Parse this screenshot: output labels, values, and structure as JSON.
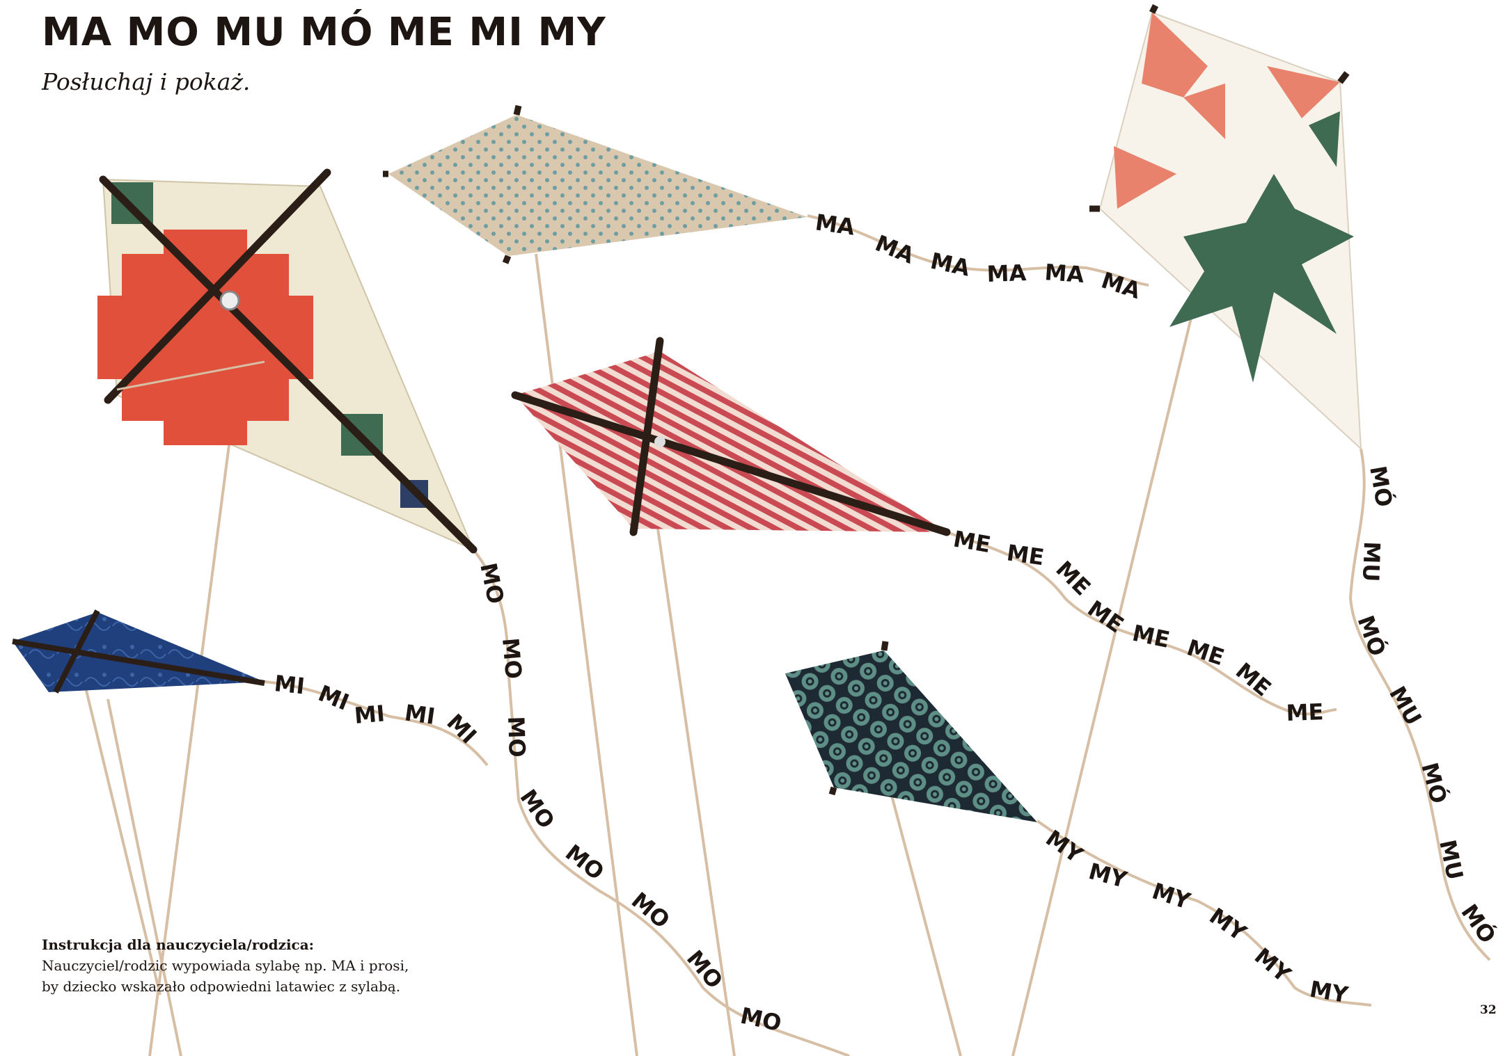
{
  "header": {
    "title": "MA MO MU MÓ ME MI MY",
    "subtitle": "Posłuchaj i pokaż."
  },
  "instruction": {
    "heading": "Instrukcja dla nauczyciela/rodzica:",
    "line1": "Nauczyciel/rodzic wypowiada sylabę np. MA i prosi,",
    "line2": "by dziecko wskazało odpowiedni latawiec z sylabą."
  },
  "page_number": "32",
  "colors": {
    "text": "#1c1512",
    "string": "#d6bfa5",
    "stick": "#2a1e17",
    "kite_cream": "#efe8d3",
    "kite_coral": "#e8826d",
    "kite_red_orange": "#e0503a",
    "kite_green": "#3f6b52",
    "kite_navy": "#1f3f7d",
    "kite_teal": "#5e8f86",
    "kite_stripe_red": "#c94a52",
    "kite_dots_bg": "#d9c7ae",
    "kite_dots": "#6f9ea2"
  },
  "kites": [
    {
      "name": "kite-cream-orange",
      "pattern": "cream-orange-cross",
      "syllable": "MO"
    },
    {
      "name": "kite-dotted",
      "pattern": "dotted",
      "syllable": "MA"
    },
    {
      "name": "kite-star",
      "pattern": "coral-green-star",
      "syllable": "MÓ / MU"
    },
    {
      "name": "kite-striped",
      "pattern": "red-stripes",
      "syllable": "ME"
    },
    {
      "name": "kite-blue",
      "pattern": "navy-floral",
      "syllable": "MI"
    },
    {
      "name": "kite-teal",
      "pattern": "teal-circles",
      "syllable": "MY"
    }
  ],
  "tails": {
    "ma": [
      "MA",
      "MA",
      "MA",
      "MA",
      "MA",
      "MA"
    ],
    "mo": [
      "MO",
      "MO",
      "MO",
      "MO",
      "MO",
      "MO",
      "MO",
      "MO"
    ],
    "mi": [
      "MI",
      "MI",
      "MI",
      "MI",
      "MI"
    ],
    "me": [
      "ME",
      "ME",
      "ME",
      "ME",
      "ME",
      "ME",
      "ME",
      "ME"
    ],
    "mumo": [
      "MÓ",
      "MU",
      "MÓ",
      "MU",
      "MÓ",
      "MU",
      "MÓ"
    ],
    "my": [
      "MY",
      "MY",
      "MY",
      "MY",
      "MY",
      "MY"
    ]
  }
}
